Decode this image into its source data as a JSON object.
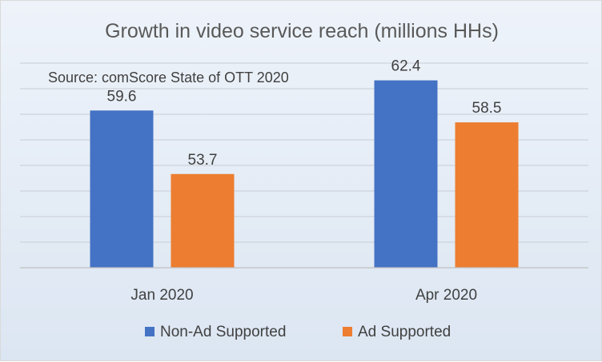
{
  "chart_data": {
    "type": "bar",
    "title": "Growth in video service reach (millions HHs)",
    "annotation": "Source: comScore State of OTT 2020",
    "categories": [
      "Jan 2020",
      "Apr 2020"
    ],
    "series": [
      {
        "name": "Non-Ad Supported",
        "values": [
          59.6,
          62.4
        ],
        "color": "#4472c4"
      },
      {
        "name": "Ad Supported",
        "values": [
          53.7,
          58.5
        ],
        "color": "#ed7d31"
      }
    ],
    "ylim": [
      45,
      64
    ],
    "grid": true,
    "legend": "bottom"
  }
}
